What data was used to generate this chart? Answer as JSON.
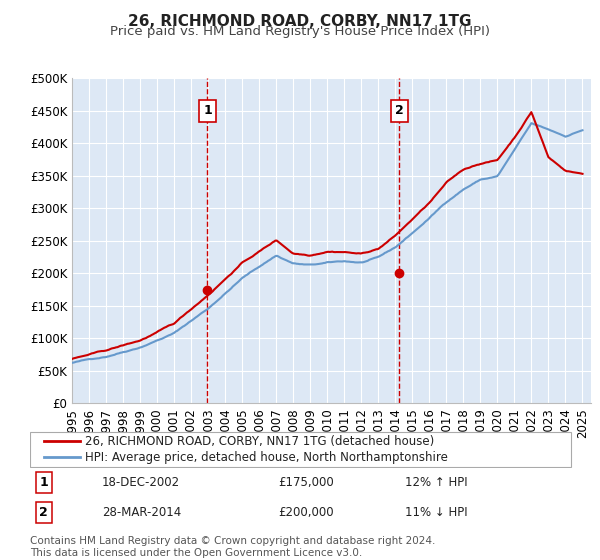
{
  "title": "26, RICHMOND ROAD, CORBY, NN17 1TG",
  "subtitle": "Price paid vs. HM Land Registry's House Price Index (HPI)",
  "ylabel_ticks": [
    "£0",
    "£50K",
    "£100K",
    "£150K",
    "£200K",
    "£250K",
    "£300K",
    "£350K",
    "£400K",
    "£450K",
    "£500K"
  ],
  "ytick_values": [
    0,
    50000,
    100000,
    150000,
    200000,
    250000,
    300000,
    350000,
    400000,
    450000,
    500000
  ],
  "xlim": [
    1995.0,
    2025.5
  ],
  "ylim": [
    0,
    500000
  ],
  "xtick_years": [
    1995,
    1996,
    1997,
    1998,
    1999,
    2000,
    2001,
    2002,
    2003,
    2004,
    2005,
    2006,
    2007,
    2008,
    2009,
    2010,
    2011,
    2012,
    2013,
    2014,
    2015,
    2016,
    2017,
    2018,
    2019,
    2020,
    2021,
    2022,
    2023,
    2024,
    2025
  ],
  "hpi_color": "#6699cc",
  "price_color": "#cc0000",
  "vline_color": "#cc0000",
  "annotation_box_color": "#cc0000",
  "background_fill": "#dde8f5",
  "grid_color": "#ffffff",
  "legend_label_price": "26, RICHMOND ROAD, CORBY, NN17 1TG (detached house)",
  "legend_label_hpi": "HPI: Average price, detached house, North Northamptonshire",
  "event1_x": 2002.96,
  "event1_y": 175000,
  "event1_label": "1",
  "event1_date": "18-DEC-2002",
  "event1_price": "£175,000",
  "event1_hpi": "12% ↑ HPI",
  "event2_x": 2014.24,
  "event2_y": 200000,
  "event2_label": "2",
  "event2_date": "28-MAR-2014",
  "event2_price": "£200,000",
  "event2_hpi": "11% ↓ HPI",
  "footer_text": "Contains HM Land Registry data © Crown copyright and database right 2024.\nThis data is licensed under the Open Government Licence v3.0.",
  "title_fontsize": 11,
  "subtitle_fontsize": 9.5,
  "tick_fontsize": 8.5,
  "legend_fontsize": 8.5,
  "footer_fontsize": 7.5
}
